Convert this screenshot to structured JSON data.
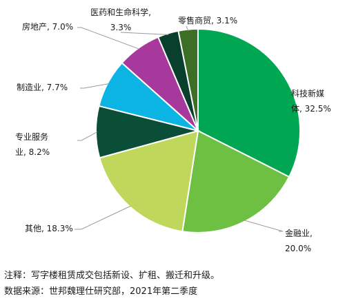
{
  "chart_data": {
    "type": "pie",
    "title": "",
    "slices": [
      {
        "name": "科技新媒体",
        "value": 32.5,
        "color": "#00a651",
        "label_lines": [
          "科技新媒",
          "体, 32.5%"
        ]
      },
      {
        "name": "金融业",
        "value": 20.0,
        "color": "#6ec043",
        "label_lines": [
          "金融业,",
          "20.0%"
        ]
      },
      {
        "name": "其他",
        "value": 18.3,
        "color": "#bfd85b",
        "label_lines": [
          "其他, 18.3%"
        ]
      },
      {
        "name": "专业服务业",
        "value": 8.2,
        "color": "#0b4e38",
        "label_lines": [
          "专业服务",
          "业, 8.2%"
        ]
      },
      {
        "name": "制造业",
        "value": 7.7,
        "color": "#0bb4e2",
        "label_lines": [
          "制造业, 7.7%"
        ]
      },
      {
        "name": "房地产",
        "value": 7.0,
        "color": "#a7399c",
        "label_lines": [
          "房地产, 7.0%"
        ]
      },
      {
        "name": "医药和生命科学",
        "value": 3.3,
        "color": "#093f2d",
        "label_lines": [
          "医药和生命科学,",
          "3.3%"
        ]
      },
      {
        "name": "零售商贸",
        "value": 3.1,
        "color": "#3c6e26",
        "label_lines": [
          "零售商贸, 3.1%"
        ]
      }
    ]
  },
  "notes": {
    "note": "注释：写字楼租赁成交包括新设、扩租、搬迁和升级。",
    "source": "数据来源：世邦魏理仕研究部，2021年第二季度"
  }
}
